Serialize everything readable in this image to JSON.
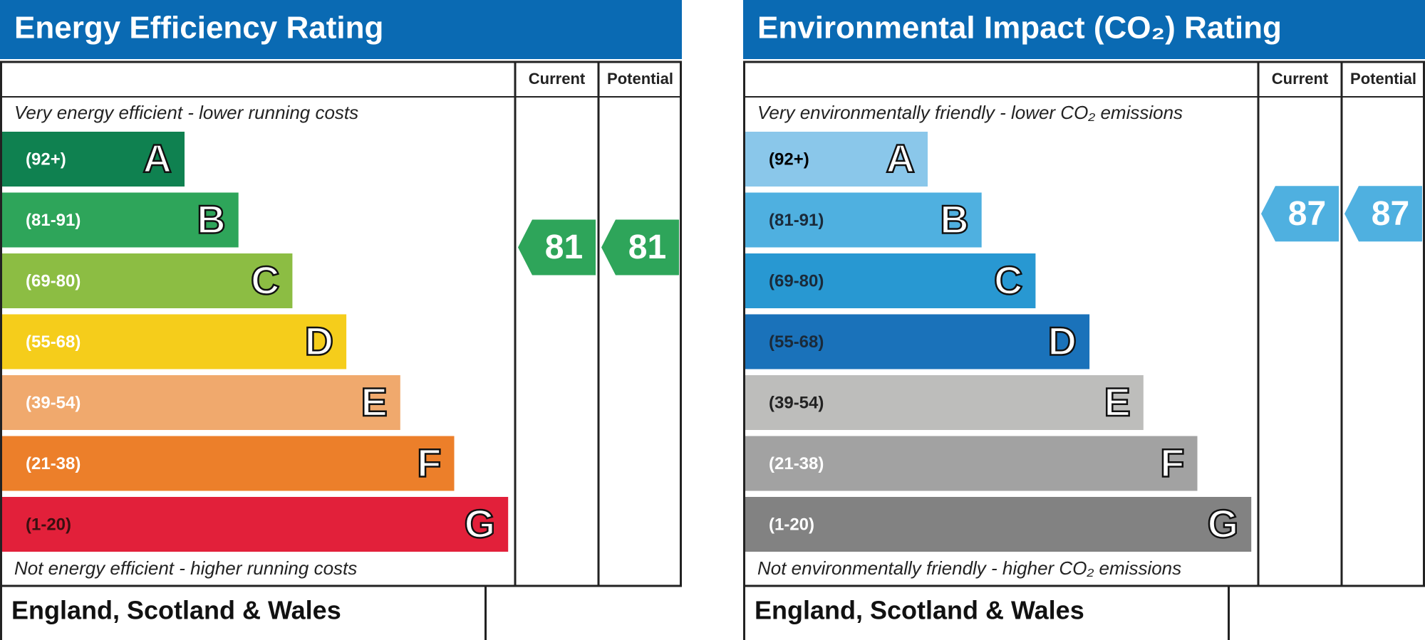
{
  "panels": [
    {
      "title": "Energy Efficiency Rating",
      "columns": [
        "Current",
        "Potential"
      ],
      "top_note": "Very energy efficient - lower running costs",
      "bottom_note": "Not energy efficient - higher running costs",
      "bands": [
        {
          "range": "(92+)",
          "letter": "A",
          "color": "#0f8150",
          "text_color": "#ffffff"
        },
        {
          "range": "(81-91)",
          "letter": "B",
          "color": "#2ea55a",
          "text_color": "#ffffff"
        },
        {
          "range": "(69-80)",
          "letter": "C",
          "color": "#8cbd43",
          "text_color": "#ffffff"
        },
        {
          "range": "(55-68)",
          "letter": "D",
          "color": "#f5cd1b",
          "text_color": "#ffffff"
        },
        {
          "range": "(39-54)",
          "letter": "E",
          "color": "#f0a96d",
          "text_color": "#ffffff"
        },
        {
          "range": "(21-38)",
          "letter": "F",
          "color": "#ec7f2a",
          "text_color": "#ffffff"
        },
        {
          "range": "(1-20)",
          "letter": "G",
          "color": "#e2203a",
          "text_color": "#3a1010"
        }
      ],
      "current": 81,
      "potential": 81,
      "indicator_color": "#2ea55a",
      "region": "England, Scotland & Wales"
    },
    {
      "title": "Environmental Impact (CO₂) Rating",
      "columns": [
        "Current",
        "Potential"
      ],
      "top_note": "Very environmentally friendly - lower CO₂ emissions",
      "bottom_note": "Not environmentally friendly - higher CO₂ emissions",
      "bands": [
        {
          "range": "(92+)",
          "letter": "A",
          "color": "#8ac7ea",
          "text_color": "#000000"
        },
        {
          "range": "(81-91)",
          "letter": "B",
          "color": "#4fb0e0",
          "text_color": "#1a2a3a"
        },
        {
          "range": "(69-80)",
          "letter": "C",
          "color": "#2898d2",
          "text_color": "#1a2a3a"
        },
        {
          "range": "(55-68)",
          "letter": "D",
          "color": "#1a72ba",
          "text_color": "#1a2a3a"
        },
        {
          "range": "(39-54)",
          "letter": "E",
          "color": "#bdbdbb",
          "text_color": "#222222"
        },
        {
          "range": "(21-38)",
          "letter": "F",
          "color": "#a2a2a2",
          "text_color": "#ffffff"
        },
        {
          "range": "(1-20)",
          "letter": "G",
          "color": "#828282",
          "text_color": "#ffffff"
        }
      ],
      "current": 87,
      "potential": 87,
      "indicator_color": "#4fb0e0",
      "region": "England, Scotland & Wales"
    }
  ]
}
